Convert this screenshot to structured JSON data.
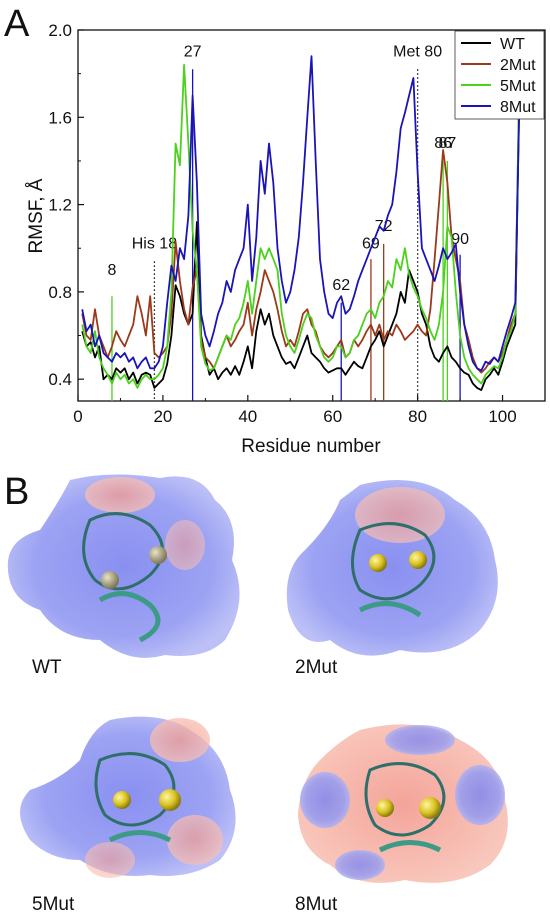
{
  "panel_a_letter": "A",
  "panel_b_letter": "B",
  "chart_data": {
    "type": "line",
    "title": "",
    "xlabel": "Residue number",
    "ylabel": "RMSF, Å",
    "xlim": [
      0,
      110
    ],
    "ylim": [
      0.3,
      2.0
    ],
    "xticks": [
      0,
      20,
      40,
      60,
      80,
      100
    ],
    "yticks": [
      0.4,
      0.8,
      1.2,
      1.6,
      2.0
    ],
    "ytick_labels": [
      "0.4",
      "0.8",
      "1.2",
      "1.6",
      "2.0"
    ],
    "grid": false,
    "legend_position": "top-right",
    "series": [
      {
        "name": "WT",
        "color": "#000000",
        "x": [
          1,
          2,
          3,
          4,
          5,
          6,
          7,
          8,
          9,
          10,
          11,
          12,
          13,
          14,
          15,
          16,
          17,
          18,
          19,
          20,
          21,
          22,
          23,
          24,
          25,
          26,
          27,
          28,
          29,
          30,
          31,
          32,
          33,
          34,
          35,
          36,
          37,
          38,
          39,
          40,
          41,
          42,
          43,
          44,
          45,
          46,
          47,
          48,
          49,
          50,
          51,
          52,
          53,
          54,
          55,
          56,
          57,
          58,
          59,
          60,
          61,
          62,
          63,
          64,
          65,
          66,
          67,
          68,
          69,
          70,
          71,
          72,
          73,
          74,
          75,
          76,
          77,
          78,
          79,
          80,
          81,
          82,
          83,
          84,
          85,
          86,
          87,
          88,
          89,
          90,
          91,
          92,
          93,
          94,
          95,
          96,
          97,
          98,
          99,
          100,
          101,
          102,
          103,
          104
        ],
        "values": [
          0.62,
          0.55,
          0.57,
          0.5,
          0.55,
          0.4,
          0.42,
          0.4,
          0.45,
          0.43,
          0.45,
          0.4,
          0.43,
          0.38,
          0.42,
          0.43,
          0.42,
          0.36,
          0.38,
          0.4,
          0.47,
          0.6,
          0.83,
          0.78,
          0.7,
          0.65,
          0.7,
          1.12,
          0.6,
          0.5,
          0.42,
          0.45,
          0.4,
          0.43,
          0.45,
          0.42,
          0.46,
          0.42,
          0.48,
          0.55,
          0.45,
          0.62,
          0.72,
          0.65,
          0.7,
          0.6,
          0.55,
          0.5,
          0.47,
          0.48,
          0.45,
          0.5,
          0.55,
          0.6,
          0.52,
          0.5,
          0.48,
          0.45,
          0.43,
          0.44,
          0.45,
          0.45,
          0.42,
          0.45,
          0.48,
          0.46,
          0.45,
          0.5,
          0.55,
          0.58,
          0.62,
          0.55,
          0.6,
          0.65,
          0.7,
          0.8,
          0.75,
          0.9,
          0.85,
          0.8,
          0.7,
          0.65,
          0.55,
          0.5,
          0.48,
          0.52,
          0.55,
          0.5,
          0.48,
          0.45,
          0.43,
          0.42,
          0.38,
          0.36,
          0.35,
          0.4,
          0.42,
          0.45,
          0.42,
          0.48,
          0.55,
          0.6,
          0.65,
          1.75
        ]
      },
      {
        "name": "2Mut",
        "color": "#9b3a1a",
        "x": [
          1,
          2,
          3,
          4,
          5,
          6,
          7,
          8,
          9,
          10,
          11,
          12,
          13,
          14,
          15,
          16,
          17,
          18,
          19,
          20,
          21,
          22,
          23,
          24,
          25,
          26,
          27,
          28,
          29,
          30,
          31,
          32,
          33,
          34,
          35,
          36,
          37,
          38,
          39,
          40,
          41,
          42,
          43,
          44,
          45,
          46,
          47,
          48,
          49,
          50,
          51,
          52,
          53,
          54,
          55,
          56,
          57,
          58,
          59,
          60,
          61,
          62,
          63,
          64,
          65,
          66,
          67,
          68,
          69,
          70,
          71,
          72,
          73,
          74,
          75,
          76,
          77,
          78,
          79,
          80,
          81,
          82,
          83,
          84,
          85,
          86,
          87,
          88,
          89,
          90,
          91,
          92,
          93,
          94,
          95,
          96,
          97,
          98,
          99,
          100,
          101,
          102,
          103,
          104
        ],
        "values": [
          0.7,
          0.6,
          0.58,
          0.72,
          0.6,
          0.55,
          0.5,
          0.55,
          0.62,
          0.58,
          0.55,
          0.6,
          0.65,
          0.78,
          0.7,
          0.6,
          0.78,
          0.52,
          0.5,
          0.52,
          0.55,
          0.7,
          1.03,
          0.85,
          0.72,
          0.65,
          0.82,
          0.9,
          0.58,
          0.5,
          0.48,
          0.45,
          0.5,
          0.55,
          0.6,
          0.55,
          0.58,
          0.62,
          0.65,
          0.75,
          0.6,
          0.72,
          0.8,
          0.9,
          0.85,
          0.8,
          0.72,
          0.62,
          0.55,
          0.58,
          0.55,
          0.62,
          0.7,
          0.72,
          0.65,
          0.62,
          0.55,
          0.52,
          0.5,
          0.52,
          0.55,
          0.58,
          0.5,
          0.52,
          0.58,
          0.55,
          0.58,
          0.62,
          0.65,
          0.6,
          0.65,
          0.58,
          0.62,
          0.6,
          0.65,
          0.62,
          0.58,
          0.6,
          0.62,
          0.65,
          0.62,
          0.6,
          0.72,
          0.95,
          1.2,
          1.45,
          1.3,
          1.05,
          0.95,
          0.85,
          0.65,
          0.58,
          0.5,
          0.45,
          0.43,
          0.45,
          0.48,
          0.5,
          0.48,
          0.52,
          0.58,
          0.65,
          0.7,
          1.8
        ]
      },
      {
        "name": "5Mut",
        "color": "#4cd11c",
        "x": [
          1,
          2,
          3,
          4,
          5,
          6,
          7,
          8,
          9,
          10,
          11,
          12,
          13,
          14,
          15,
          16,
          17,
          18,
          19,
          20,
          21,
          22,
          23,
          24,
          25,
          26,
          27,
          28,
          29,
          30,
          31,
          32,
          33,
          34,
          35,
          36,
          37,
          38,
          39,
          40,
          41,
          42,
          43,
          44,
          45,
          46,
          47,
          48,
          49,
          50,
          51,
          52,
          53,
          54,
          55,
          56,
          57,
          58,
          59,
          60,
          61,
          62,
          63,
          64,
          65,
          66,
          67,
          68,
          69,
          70,
          71,
          72,
          73,
          74,
          75,
          76,
          77,
          78,
          79,
          80,
          81,
          82,
          83,
          84,
          85,
          86,
          87,
          88,
          89,
          90,
          91,
          92,
          93,
          94,
          95,
          96,
          97,
          98,
          99,
          100,
          101,
          102,
          103,
          104
        ],
        "values": [
          0.65,
          0.55,
          0.52,
          0.62,
          0.5,
          0.45,
          0.42,
          0.38,
          0.43,
          0.4,
          0.42,
          0.38,
          0.4,
          0.36,
          0.4,
          0.42,
          0.4,
          0.4,
          0.42,
          0.45,
          0.55,
          0.8,
          1.48,
          1.38,
          1.84,
          1.48,
          1.08,
          0.9,
          0.55,
          0.47,
          0.44,
          0.45,
          0.5,
          0.55,
          0.6,
          0.58,
          0.65,
          0.68,
          0.75,
          0.85,
          0.7,
          0.85,
          1.0,
          0.95,
          1.0,
          0.95,
          0.9,
          0.7,
          0.6,
          0.55,
          0.52,
          0.58,
          0.65,
          0.7,
          0.68,
          0.6,
          0.55,
          0.5,
          0.48,
          0.5,
          0.55,
          0.55,
          0.5,
          0.52,
          0.58,
          0.6,
          0.65,
          0.7,
          0.72,
          0.68,
          0.75,
          0.78,
          0.85,
          0.82,
          0.95,
          0.9,
          1.0,
          0.88,
          0.82,
          0.78,
          0.72,
          0.68,
          0.62,
          0.58,
          0.65,
          0.8,
          1.1,
          1.05,
          0.8,
          0.6,
          0.5,
          0.45,
          0.42,
          0.4,
          0.38,
          0.42,
          0.44,
          0.46,
          0.45,
          0.5,
          0.58,
          0.62,
          0.7,
          1.85
        ]
      },
      {
        "name": "8Mut",
        "color": "#1a14b8",
        "x": [
          1,
          2,
          3,
          4,
          5,
          6,
          7,
          8,
          9,
          10,
          11,
          12,
          13,
          14,
          15,
          16,
          17,
          18,
          19,
          20,
          21,
          22,
          23,
          24,
          25,
          26,
          27,
          28,
          29,
          30,
          31,
          32,
          33,
          34,
          35,
          36,
          37,
          38,
          39,
          40,
          41,
          42,
          43,
          44,
          45,
          46,
          47,
          48,
          49,
          50,
          51,
          52,
          53,
          54,
          55,
          56,
          57,
          58,
          59,
          60,
          61,
          62,
          63,
          64,
          65,
          66,
          67,
          68,
          69,
          70,
          71,
          72,
          73,
          74,
          75,
          76,
          77,
          78,
          79,
          80,
          81,
          82,
          83,
          84,
          85,
          86,
          87,
          88,
          89,
          90,
          91,
          92,
          93,
          94,
          95,
          96,
          97,
          98,
          99,
          100,
          101,
          102,
          103,
          104
        ],
        "values": [
          0.72,
          0.62,
          0.65,
          0.55,
          0.6,
          0.52,
          0.5,
          0.48,
          0.52,
          0.5,
          0.52,
          0.48,
          0.5,
          0.45,
          0.48,
          0.5,
          0.45,
          0.45,
          0.48,
          0.55,
          0.75,
          0.92,
          0.85,
          1.0,
          0.95,
          1.15,
          1.7,
          1.3,
          0.7,
          0.6,
          0.55,
          0.62,
          0.7,
          0.75,
          0.85,
          0.8,
          0.9,
          0.95,
          1.0,
          1.2,
          0.85,
          1.05,
          1.4,
          1.25,
          1.48,
          1.3,
          1.0,
          0.85,
          0.75,
          0.8,
          0.9,
          1.05,
          1.3,
          1.6,
          1.88,
          1.4,
          0.95,
          0.8,
          0.7,
          0.68,
          0.75,
          0.78,
          0.7,
          0.72,
          0.78,
          0.85,
          0.9,
          0.95,
          1.0,
          1.05,
          1.1,
          1.08,
          1.15,
          1.2,
          1.35,
          1.55,
          1.62,
          1.7,
          1.78,
          1.35,
          1.0,
          0.95,
          0.9,
          0.85,
          0.92,
          1.0,
          0.95,
          0.98,
          1.02,
          0.8,
          0.65,
          0.55,
          0.48,
          0.45,
          0.44,
          0.48,
          0.47,
          0.5,
          0.48,
          0.55,
          0.62,
          0.68,
          0.75,
          1.7
        ]
      }
    ],
    "annotations": [
      {
        "label": "8",
        "x": 8,
        "y": 0.86,
        "line_top": 0.78,
        "color": "#4cd11c"
      },
      {
        "label": "His 18",
        "x": 18,
        "y": 0.98,
        "line_top": 0.94,
        "color": "#111111",
        "dotted": true
      },
      {
        "label": "27",
        "x": 27,
        "y": 1.86,
        "line_top": 1.82,
        "color": "#1a14b8"
      },
      {
        "label": "62",
        "x": 62,
        "y": 0.79,
        "line_top": 0.75,
        "color": "#1a14b8"
      },
      {
        "label": "69",
        "x": 69,
        "y": 0.98,
        "line_top": 0.95,
        "color": "#9b3a1a"
      },
      {
        "label": "72",
        "x": 72,
        "y": 1.06,
        "line_top": 1.02,
        "color": "#9b3a1a"
      },
      {
        "label": "Met 80",
        "x": 80,
        "y": 1.86,
        "line_top": 1.82,
        "color": "#111111",
        "dotted": true
      },
      {
        "label": "86",
        "x": 86,
        "y": 1.44,
        "line_top": 1.4,
        "color": "#4cd11c"
      },
      {
        "label": "87",
        "x": 87,
        "y": 1.44,
        "line_top": 1.4,
        "color": "#4cd11c"
      },
      {
        "label": "90",
        "x": 90,
        "y": 1.0,
        "line_top": 0.97,
        "color": "#1a14b8"
      }
    ]
  },
  "structures": [
    {
      "label": "WT"
    },
    {
      "label": "2Mut"
    },
    {
      "label": "5Mut"
    },
    {
      "label": "8Mut"
    }
  ]
}
